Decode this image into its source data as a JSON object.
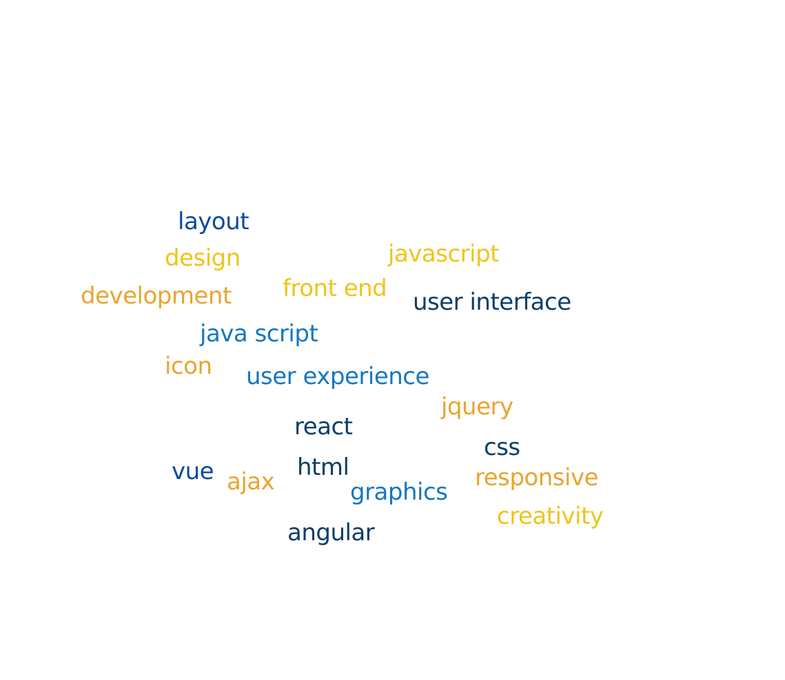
{
  "words": {
    "layout": {
      "text": "layout",
      "color": "#0a4a9e"
    },
    "design": {
      "text": "design",
      "color": "#f0c419"
    },
    "javascript": {
      "text": "javascript",
      "color": "#f0c419"
    },
    "development": {
      "text": "development",
      "color": "#e8a52e"
    },
    "front_end": {
      "text": "front end",
      "color": "#f0c419"
    },
    "user_interface": {
      "text": "user interface",
      "color": "#0b3e66"
    },
    "java_script": {
      "text": "java script",
      "color": "#1577c2"
    },
    "icon": {
      "text": "icon",
      "color": "#e8a52e"
    },
    "user_experience": {
      "text": "user experience",
      "color": "#1577c2"
    },
    "jquery": {
      "text": "jquery",
      "color": "#e8a52e"
    },
    "react": {
      "text": "react",
      "color": "#0b3e66"
    },
    "css": {
      "text": "css",
      "color": "#0b3e66"
    },
    "vue": {
      "text": "vue",
      "color": "#0a4a9e"
    },
    "ajax": {
      "text": "ajax",
      "color": "#e8a52e"
    },
    "html": {
      "text": "html",
      "color": "#0b3e66"
    },
    "responsive": {
      "text": "responsive",
      "color": "#e8a52e"
    },
    "graphics": {
      "text": "graphics",
      "color": "#1577c2"
    },
    "creativity": {
      "text": "creativity",
      "color": "#f0c419"
    },
    "angular": {
      "text": "angular",
      "color": "#0b3e66"
    }
  }
}
